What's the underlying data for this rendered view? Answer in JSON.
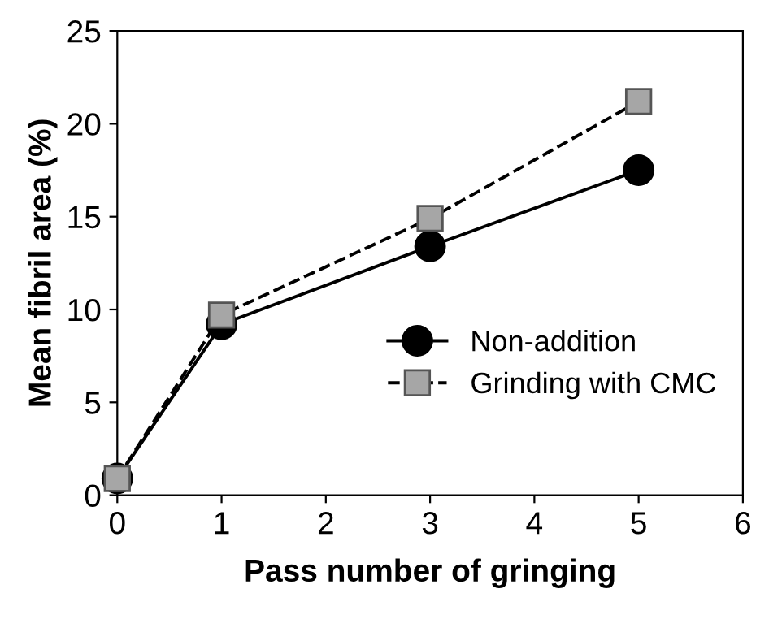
{
  "chart_data": {
    "type": "line",
    "xlabel": "Pass number of gringing",
    "ylabel": "Mean fibril area (%)",
    "x": [
      0,
      1,
      3,
      5
    ],
    "series": [
      {
        "name": "Non-addition",
        "color": "#000000",
        "values": [
          0.9,
          9.2,
          13.4,
          17.5
        ],
        "marker": "circle",
        "line_style": "solid"
      },
      {
        "name": "Grinding with CMC",
        "color": "#a6a6a6",
        "values": [
          0.9,
          9.7,
          14.9,
          21.2
        ],
        "marker": "square",
        "line_style": "dashed"
      }
    ],
    "xlim": [
      0,
      6
    ],
    "xticks": [
      0,
      1,
      2,
      3,
      4,
      5,
      6
    ],
    "ylim": [
      0,
      25
    ],
    "yticks": [
      0,
      5,
      10,
      15,
      20,
      25
    ],
    "grid": false,
    "legend": "bottom right"
  }
}
